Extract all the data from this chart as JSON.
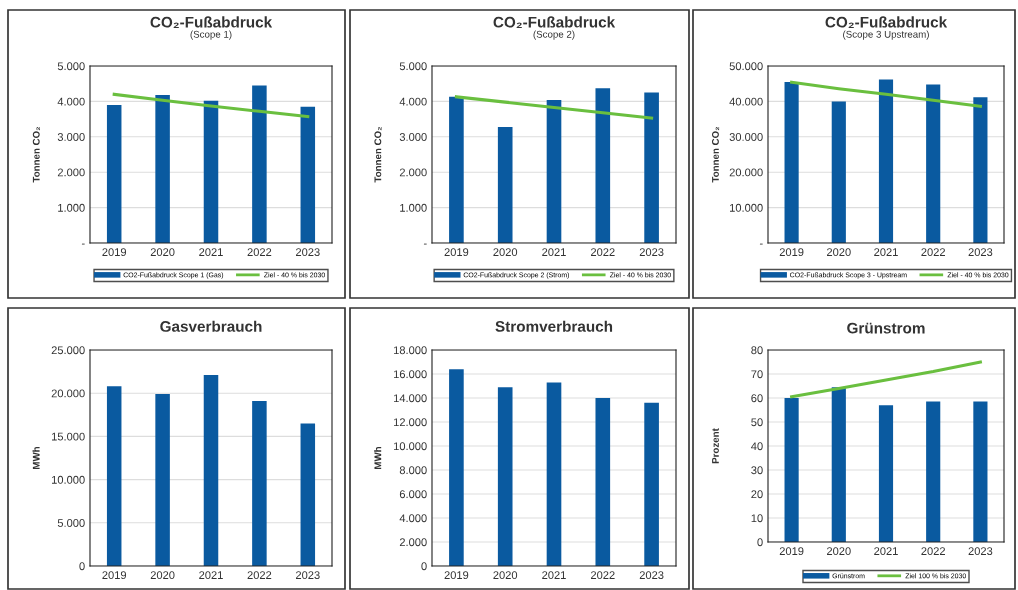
{
  "chart_data": [
    {
      "type": "bar",
      "title": "CO₂-Fußabdruck",
      "subtitle": "(Scope 1)",
      "ylabel": "Tonnen CO₂",
      "categories": [
        "2019",
        "2020",
        "2021",
        "2022",
        "2023"
      ],
      "series": [
        {
          "name": "CO2-Fußabdruck Scope 1 (Gas)",
          "color": "#0a5aa0",
          "values": [
            3900,
            4180,
            4020,
            4450,
            3850
          ]
        },
        {
          "name": "Ziel - 40 % bis 2030",
          "type": "line",
          "color": "#6abf3f",
          "values": [
            4200,
            4030,
            3870,
            3720,
            3570
          ]
        }
      ],
      "ylim": [
        0,
        5000
      ],
      "yticks": [
        {
          "value": 0,
          "label": "-"
        },
        {
          "value": 1000,
          "label": "1.000"
        },
        {
          "value": 2000,
          "label": "2.000"
        },
        {
          "value": 3000,
          "label": "3.000"
        },
        {
          "value": 4000,
          "label": "4.000"
        },
        {
          "value": 5000,
          "label": "5.000"
        }
      ],
      "grid": "y",
      "legend": "bottom"
    },
    {
      "type": "bar",
      "title": "CO₂-Fußabdruck",
      "subtitle": "(Scope 2)",
      "ylabel": "Tonnen CO₂",
      "categories": [
        "2019",
        "2020",
        "2021",
        "2022",
        "2023"
      ],
      "series": [
        {
          "name": "CO2-Fußabdruck Scope 2 (Strom)",
          "color": "#0a5aa0",
          "values": [
            4130,
            3280,
            4040,
            4370,
            4250
          ]
        },
        {
          "name": "Ziel - 40 % bis 2030",
          "type": "line",
          "color": "#6abf3f",
          "values": [
            4130,
            3980,
            3830,
            3680,
            3530
          ]
        }
      ],
      "ylim": [
        0,
        5000
      ],
      "yticks": [
        {
          "value": 0,
          "label": "-"
        },
        {
          "value": 1000,
          "label": "1.000"
        },
        {
          "value": 2000,
          "label": "2.000"
        },
        {
          "value": 3000,
          "label": "3.000"
        },
        {
          "value": 4000,
          "label": "4.000"
        },
        {
          "value": 5000,
          "label": "5.000"
        }
      ],
      "grid": "y",
      "legend": "bottom"
    },
    {
      "type": "bar",
      "title": "CO₂-Fußabdruck",
      "subtitle": "(Scope 3 Upstream)",
      "ylabel": "Tonnen CO₂",
      "categories": [
        "2019",
        "2020",
        "2021",
        "2022",
        "2023"
      ],
      "series": [
        {
          "name": "CO2-Fußabdruck Scope 3 - Upstream",
          "color": "#0a5aa0",
          "values": [
            45500,
            40000,
            46200,
            44800,
            41200
          ]
        },
        {
          "name": "Ziel - 40 % bis 2030",
          "type": "line",
          "color": "#6abf3f",
          "values": [
            45400,
            43600,
            42000,
            40300,
            38600
          ]
        }
      ],
      "ylim": [
        0,
        50000
      ],
      "yticks": [
        {
          "value": 0,
          "label": "-"
        },
        {
          "value": 10000,
          "label": "10.000"
        },
        {
          "value": 20000,
          "label": "20.000"
        },
        {
          "value": 30000,
          "label": "30.000"
        },
        {
          "value": 40000,
          "label": "40.000"
        },
        {
          "value": 50000,
          "label": "50.000"
        }
      ],
      "grid": "y",
      "legend": "bottom"
    },
    {
      "type": "bar",
      "title": "Gasverbrauch",
      "ylabel": "MWh",
      "categories": [
        "2019",
        "2020",
        "2021",
        "2022",
        "2023"
      ],
      "series": [
        {
          "color": "#0a5aa0",
          "values": [
            20800,
            19900,
            22100,
            19100,
            16500
          ]
        }
      ],
      "ylim": [
        0,
        25000
      ],
      "yticks": [
        0,
        {
          "value": 5000,
          "label": "5.000"
        },
        {
          "value": 10000,
          "label": "10.000"
        },
        {
          "value": 15000,
          "label": "15.000"
        },
        {
          "value": 20000,
          "label": "20.000"
        },
        {
          "value": 25000,
          "label": "25.000"
        }
      ],
      "grid": "y"
    },
    {
      "type": "bar",
      "title": "Stromverbrauch",
      "ylabel": "MWh",
      "categories": [
        "2019",
        "2020",
        "2021",
        "2022",
        "2023"
      ],
      "series": [
        {
          "color": "#0a5aa0",
          "values": [
            16400,
            14900,
            15300,
            14000,
            13600
          ]
        }
      ],
      "ylim": [
        0,
        18000
      ],
      "yticks": [
        0,
        {
          "value": 2000,
          "label": "2.000"
        },
        {
          "value": 4000,
          "label": "4.000"
        },
        {
          "value": 6000,
          "label": "6.000"
        },
        {
          "value": 8000,
          "label": "8.000"
        },
        {
          "value": 10000,
          "label": "10.000"
        },
        {
          "value": 12000,
          "label": "12.000"
        },
        {
          "value": 14000,
          "label": "14.000"
        },
        {
          "value": 16000,
          "label": "16.000"
        },
        {
          "value": 18000,
          "label": "18.000"
        }
      ],
      "grid": "y"
    },
    {
      "type": "bar",
      "title": "Grünstrom",
      "ylabel": "Prozent",
      "categories": [
        "2019",
        "2020",
        "2021",
        "2022",
        "2023"
      ],
      "series": [
        {
          "name": "Grünstrom",
          "color": "#0a5aa0",
          "values": [
            60,
            64.5,
            57,
            58.5,
            58.5
          ]
        },
        {
          "name": "Ziel 100 % bis 2030",
          "type": "line",
          "color": "#6abf3f",
          "values": [
            60.5,
            64,
            67.5,
            71,
            75
          ]
        }
      ],
      "ylim": [
        0,
        80
      ],
      "yticks": [
        0,
        10,
        20,
        30,
        40,
        50,
        60,
        70,
        80
      ],
      "grid": "y",
      "legend": "bottom"
    }
  ]
}
